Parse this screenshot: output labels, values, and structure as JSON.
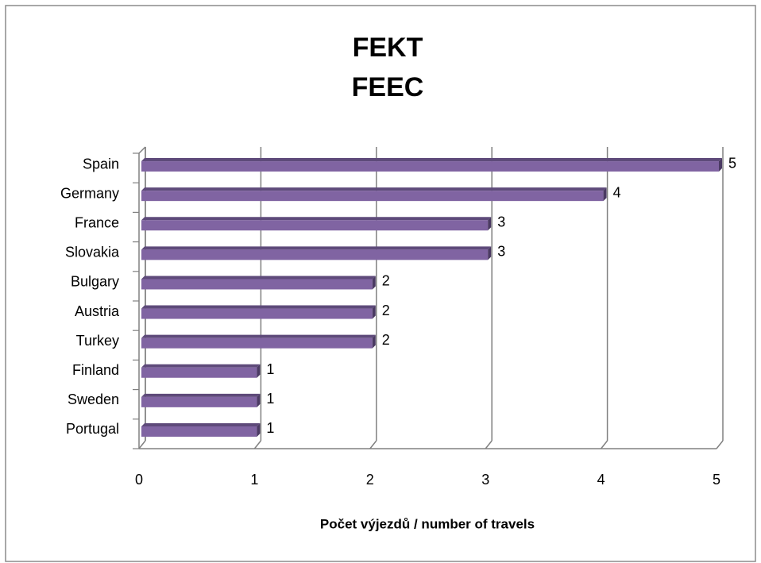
{
  "chart_data": {
    "type": "bar",
    "orientation": "horizontal",
    "title": "FEKT",
    "subtitle": "FEEC",
    "categories": [
      "Spain",
      "Germany",
      "France",
      "Slovakia",
      "Bulgary",
      "Austria",
      "Turkey",
      "Finland",
      "Sweden",
      "Portugal"
    ],
    "values": [
      5,
      4,
      3,
      3,
      2,
      2,
      2,
      1,
      1,
      1
    ],
    "color": "#8064a2",
    "xlim": [
      0,
      5
    ],
    "xticks": [
      0,
      1,
      2,
      3,
      4,
      5
    ],
    "grid": true,
    "xlabel": "Počet výjezdů / number of travels"
  }
}
